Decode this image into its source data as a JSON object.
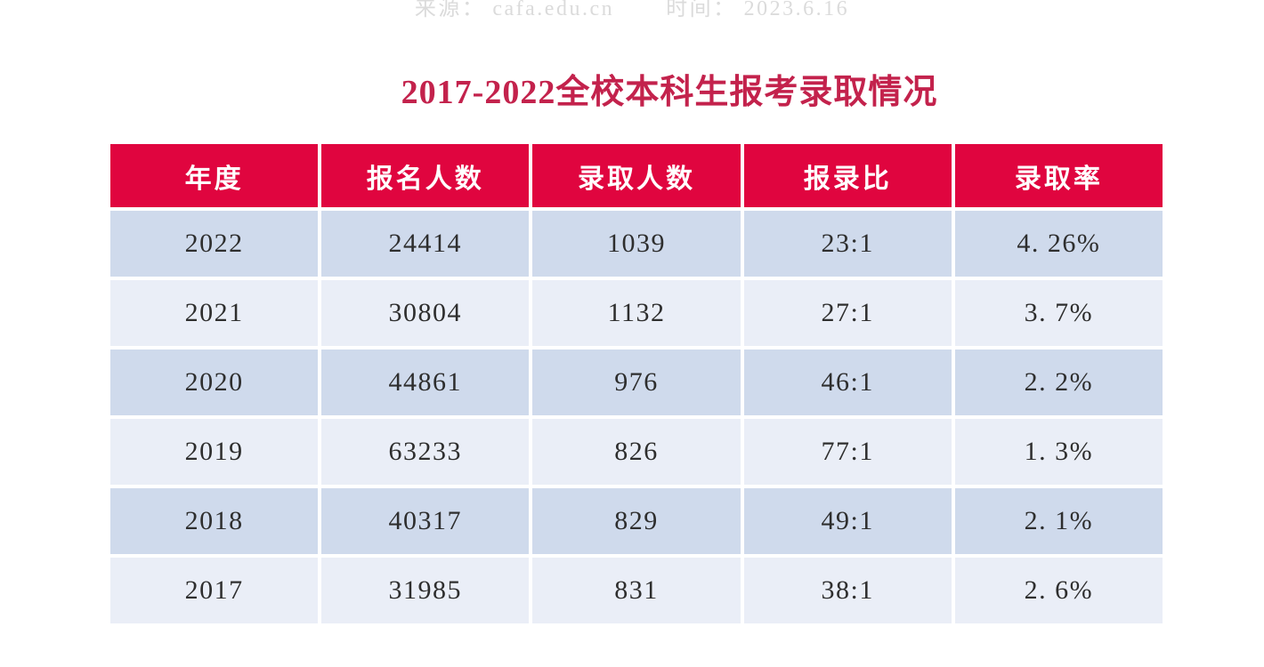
{
  "page": {
    "title": "2017-2022全校本科生报考录取情况",
    "meta": {
      "source_label": "来源：",
      "source_value": "cafa.edu.cn",
      "time_label": "时间：",
      "time_value": "2023.6.16"
    }
  },
  "table": {
    "headers": [
      "年度",
      "报名人数",
      "录取人数",
      "报录比",
      "录取率"
    ],
    "rows": [
      [
        "2022",
        "24414",
        "1039",
        "23:1",
        "4. 26%"
      ],
      [
        "2021",
        "30804",
        "1132",
        "27:1",
        "3. 7%"
      ],
      [
        "2020",
        "44861",
        "976",
        "46:1",
        "2. 2%"
      ],
      [
        "2019",
        "63233",
        "826",
        "77:1",
        "1. 3%"
      ],
      [
        "2018",
        "40317",
        "829",
        "49:1",
        "2. 1%"
      ],
      [
        "2017",
        "31985",
        "831",
        "38:1",
        "2. 6%"
      ]
    ]
  },
  "colors": {
    "header_bg": "#e0053f",
    "title_red": "#c3224c",
    "row_dark": "#cfdaec",
    "row_light": "#eaeef7",
    "meta_gray": "#dbdbdb",
    "header_text": "#ffffff",
    "cell_text": "#2e2e2e"
  },
  "chart_data": {
    "type": "table",
    "title": "2017-2022全校本科生报考录取情况",
    "columns": [
      "年度",
      "报名人数",
      "录取人数",
      "报录比",
      "录取率"
    ],
    "rows": [
      {
        "year": 2022,
        "applicants": 24414,
        "admitted": 1039,
        "ratio": "23:1",
        "admission_rate_pct": 4.26
      },
      {
        "year": 2021,
        "applicants": 30804,
        "admitted": 1132,
        "ratio": "27:1",
        "admission_rate_pct": 3.7
      },
      {
        "year": 2020,
        "applicants": 44861,
        "admitted": 976,
        "ratio": "46:1",
        "admission_rate_pct": 2.2
      },
      {
        "year": 2019,
        "applicants": 63233,
        "admitted": 826,
        "ratio": "77:1",
        "admission_rate_pct": 1.3
      },
      {
        "year": 2018,
        "applicants": 40317,
        "admitted": 829,
        "ratio": "49:1",
        "admission_rate_pct": 2.1
      },
      {
        "year": 2017,
        "applicants": 31985,
        "admitted": 831,
        "ratio": "38:1",
        "admission_rate_pct": 2.6
      }
    ],
    "layout": {
      "header_fill": "#e0053f",
      "alternating_row_fills": [
        "#cfdaec",
        "#eaeef7"
      ],
      "first_data_row": "2022",
      "order": "descending by year"
    }
  }
}
